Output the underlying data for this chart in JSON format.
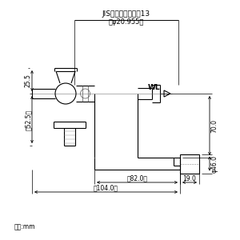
{
  "title_line1": "JIS給水栓取付ねじ13",
  "title_line2": "（φ20.955）",
  "wl_label": "WL",
  "dim_25_5": "25.5",
  "dim_52_5": "（52.5）",
  "dim_70_0": "70.0",
  "dim_46_0": "φ46.0",
  "dim_82_0": "（82.0）",
  "dim_104_0": "（104.0）",
  "dim_19_0": "19.0",
  "unit_label": "単位:mm",
  "bg_color": "#ffffff",
  "line_color": "#000000",
  "dim_color": "#000000",
  "fig_width": 3.0,
  "fig_height": 3.0,
  "dpi": 100
}
